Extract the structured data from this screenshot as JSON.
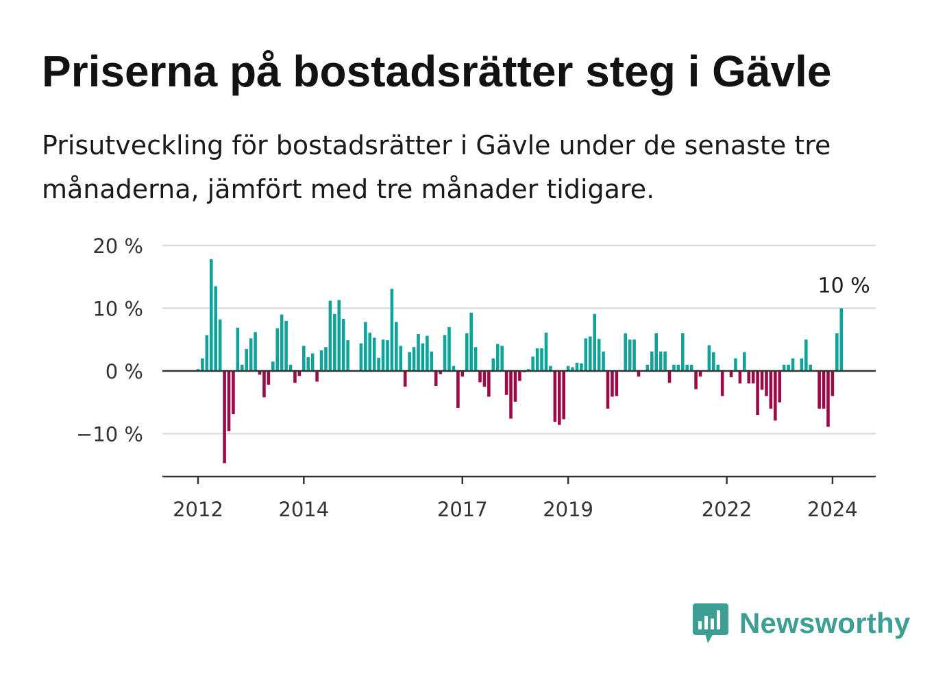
{
  "header": {
    "title": "Priserna på bostadsrätter steg i Gävle",
    "subtitle": "Prisutveckling för bostadsrätter i Gävle under de senaste tre månaderna, jämfört med tre månader tidigare."
  },
  "branding": {
    "name": "Newsworthy",
    "color": "#3d9e93"
  },
  "colors": {
    "positive": "#0fa39b",
    "negative": "#9b0b47",
    "grid": "#dddddd",
    "axis": "#333333"
  },
  "chart_data": {
    "type": "bar",
    "x_start": "2012-01",
    "x_step": "month",
    "ylim": [
      -17,
      20
    ],
    "yticks": [
      {
        "value": 20,
        "label": "20 %"
      },
      {
        "value": 10,
        "label": "10 %"
      },
      {
        "value": 0,
        "label": "0 %"
      },
      {
        "value": -10,
        "label": "−10 %"
      }
    ],
    "xticks": [
      {
        "label": "2012",
        "index": 0
      },
      {
        "label": "2014",
        "index": 24
      },
      {
        "label": "2017",
        "index": 60
      },
      {
        "label": "2019",
        "index": 84
      },
      {
        "label": "2022",
        "index": 120
      },
      {
        "label": "2024",
        "index": 144
      }
    ],
    "values": [
      0.3,
      2.0,
      5.7,
      17.8,
      13.5,
      8.2,
      -14.7,
      -9.6,
      -6.9,
      6.9,
      1.0,
      3.5,
      5.2,
      6.2,
      -0.6,
      -4.2,
      -2.2,
      1.5,
      6.8,
      9.0,
      8.0,
      1.0,
      -1.9,
      -0.8,
      4.0,
      2.2,
      2.8,
      -1.7,
      3.3,
      3.8,
      11.2,
      9.1,
      11.3,
      8.3,
      4.9,
      0.0,
      0.0,
      4.4,
      7.8,
      6.1,
      5.3,
      2.1,
      5.0,
      4.9,
      13.1,
      7.8,
      4.0,
      -2.5,
      3.0,
      3.8,
      5.9,
      4.4,
      5.6,
      3.1,
      -2.4,
      -0.5,
      5.7,
      7.0,
      0.8,
      -5.9,
      -0.9,
      6.0,
      9.3,
      3.8,
      -1.8,
      -2.5,
      -4.1,
      2.0,
      4.3,
      4.0,
      -3.8,
      -7.6,
      -4.9,
      -1.6,
      -0.2,
      0.3,
      2.3,
      3.6,
      3.6,
      6.1,
      0.8,
      -8.1,
      -8.6,
      -7.7,
      0.8,
      0.6,
      1.3,
      1.2,
      5.2,
      5.5,
      9.1,
      5.1,
      3.1,
      -6.0,
      -4.1,
      -4.0,
      0.0,
      6.0,
      5.0,
      5.0,
      -0.9,
      0.0,
      1.0,
      3.1,
      6.0,
      3.1,
      3.1,
      -1.9,
      1.0,
      1.0,
      6.0,
      1.0,
      1.0,
      -2.9,
      -0.9,
      0.0,
      4.1,
      3.0,
      1.0,
      -4.0,
      0.0,
      -1.0,
      2.0,
      -2.0,
      3.0,
      -2.0,
      -2.0,
      -7.0,
      -3.0,
      -4.0,
      -6.0,
      -7.9,
      -5.0,
      1.0,
      1.0,
      2.0,
      0.0,
      2.0,
      5.0,
      1.0,
      0.0,
      -6.0,
      -6.0,
      -8.9,
      -4.0,
      6.0,
      10.0
    ],
    "annotation": {
      "label": "10 %",
      "index": 146
    }
  }
}
